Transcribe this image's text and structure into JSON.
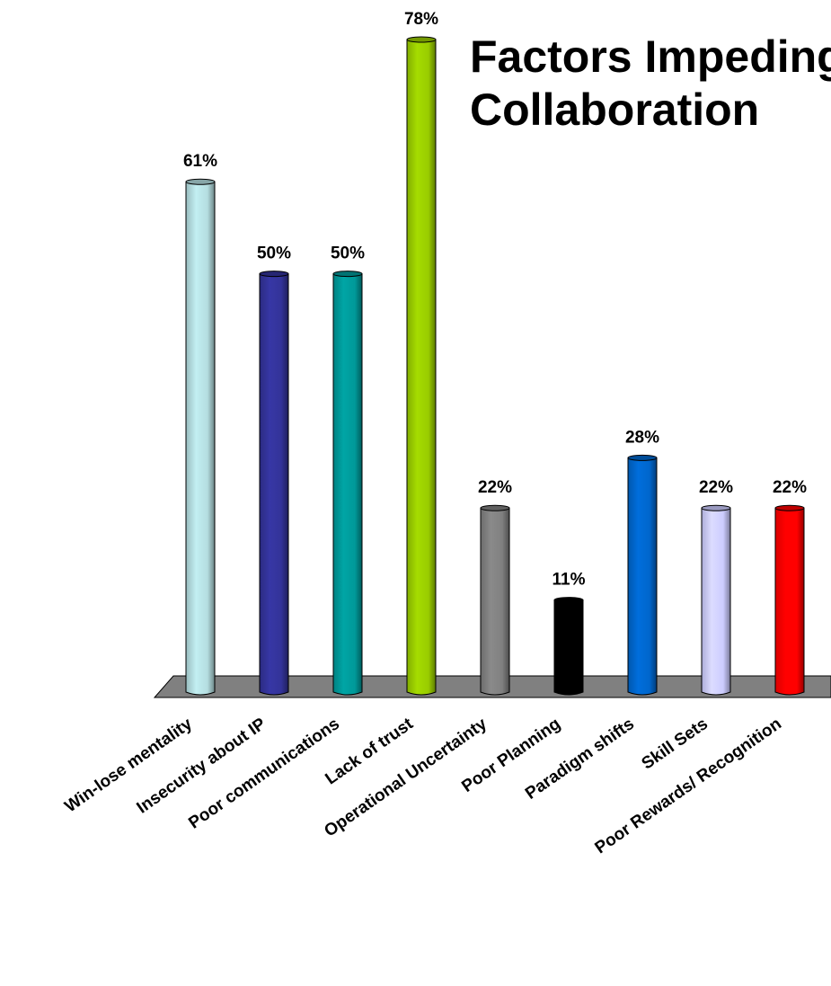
{
  "title_lines": [
    "Factors Impeding",
    "Collaboration"
  ],
  "chart_data": {
    "type": "bar",
    "title": "Factors Impeding Collaboration",
    "categories": [
      "Win-lose mentality",
      "Insecurity about IP",
      "Poor communications",
      "Lack of trust",
      "Operational Uncertainty",
      "Poor Planning",
      "Paradigm shifts",
      "Skill Sets",
      "Poor Rewards/ Recognition"
    ],
    "values": [
      61,
      50,
      50,
      78,
      22,
      11,
      28,
      22,
      22
    ],
    "value_labels": [
      "61%",
      "50%",
      "50%",
      "78%",
      "22%",
      "11%",
      "28%",
      "22%",
      "22%"
    ],
    "colors": [
      "#b4dde0",
      "#333399",
      "#009999",
      "#99cc00",
      "#808080",
      "#000000",
      "#0066cc",
      "#ccccff",
      "#ff0000"
    ],
    "ylim": [
      0,
      80
    ],
    "unit": "%",
    "grid": false,
    "legend": "none",
    "floor_color": "#808080"
  }
}
